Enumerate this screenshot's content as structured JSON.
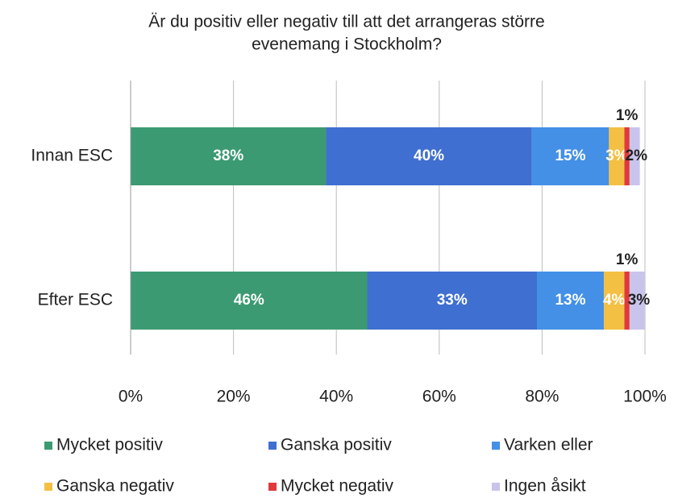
{
  "chart_data": {
    "type": "stacked-bar-horizontal",
    "title": "Är du positiv eller negativ till att det arrangeras större",
    "subtitle": "evenemang i Stockholm?",
    "categories": [
      "Innan ESC",
      "Efter ESC"
    ],
    "series": [
      {
        "name": "Mycket positiv",
        "color": "#3c9a72",
        "values": [
          38,
          46
        ],
        "value_labels": [
          "38%",
          "46%"
        ]
      },
      {
        "name": "Ganska positiv",
        "color": "#3f6fd0",
        "values": [
          40,
          33
        ],
        "value_labels": [
          "40%",
          "33%"
        ]
      },
      {
        "name": "Varken eller",
        "color": "#4390e6",
        "values": [
          15,
          13
        ],
        "value_labels": [
          "15%",
          "13%"
        ]
      },
      {
        "name": "Ganska negativ",
        "color": "#f4c043",
        "values": [
          3,
          4
        ],
        "value_labels": [
          "3%",
          "4%"
        ]
      },
      {
        "name": "Mycket negativ",
        "color": "#e0393c",
        "values": [
          1,
          1
        ],
        "value_labels": [
          "1%",
          "1%"
        ]
      },
      {
        "name": "Ingen åsikt",
        "color": "#c9c4ec",
        "values": [
          2,
          3
        ],
        "value_labels": [
          "2%",
          "3%"
        ]
      }
    ],
    "xlim": [
      0,
      100
    ],
    "xticks": [
      {
        "value": 0,
        "label": "0%"
      },
      {
        "value": 20,
        "label": "20%"
      },
      {
        "value": 40,
        "label": "40%"
      },
      {
        "value": 60,
        "label": "60%"
      },
      {
        "value": 80,
        "label": "80%"
      },
      {
        "value": 100,
        "label": "100%"
      }
    ],
    "grid": true,
    "legend": "bottom"
  }
}
